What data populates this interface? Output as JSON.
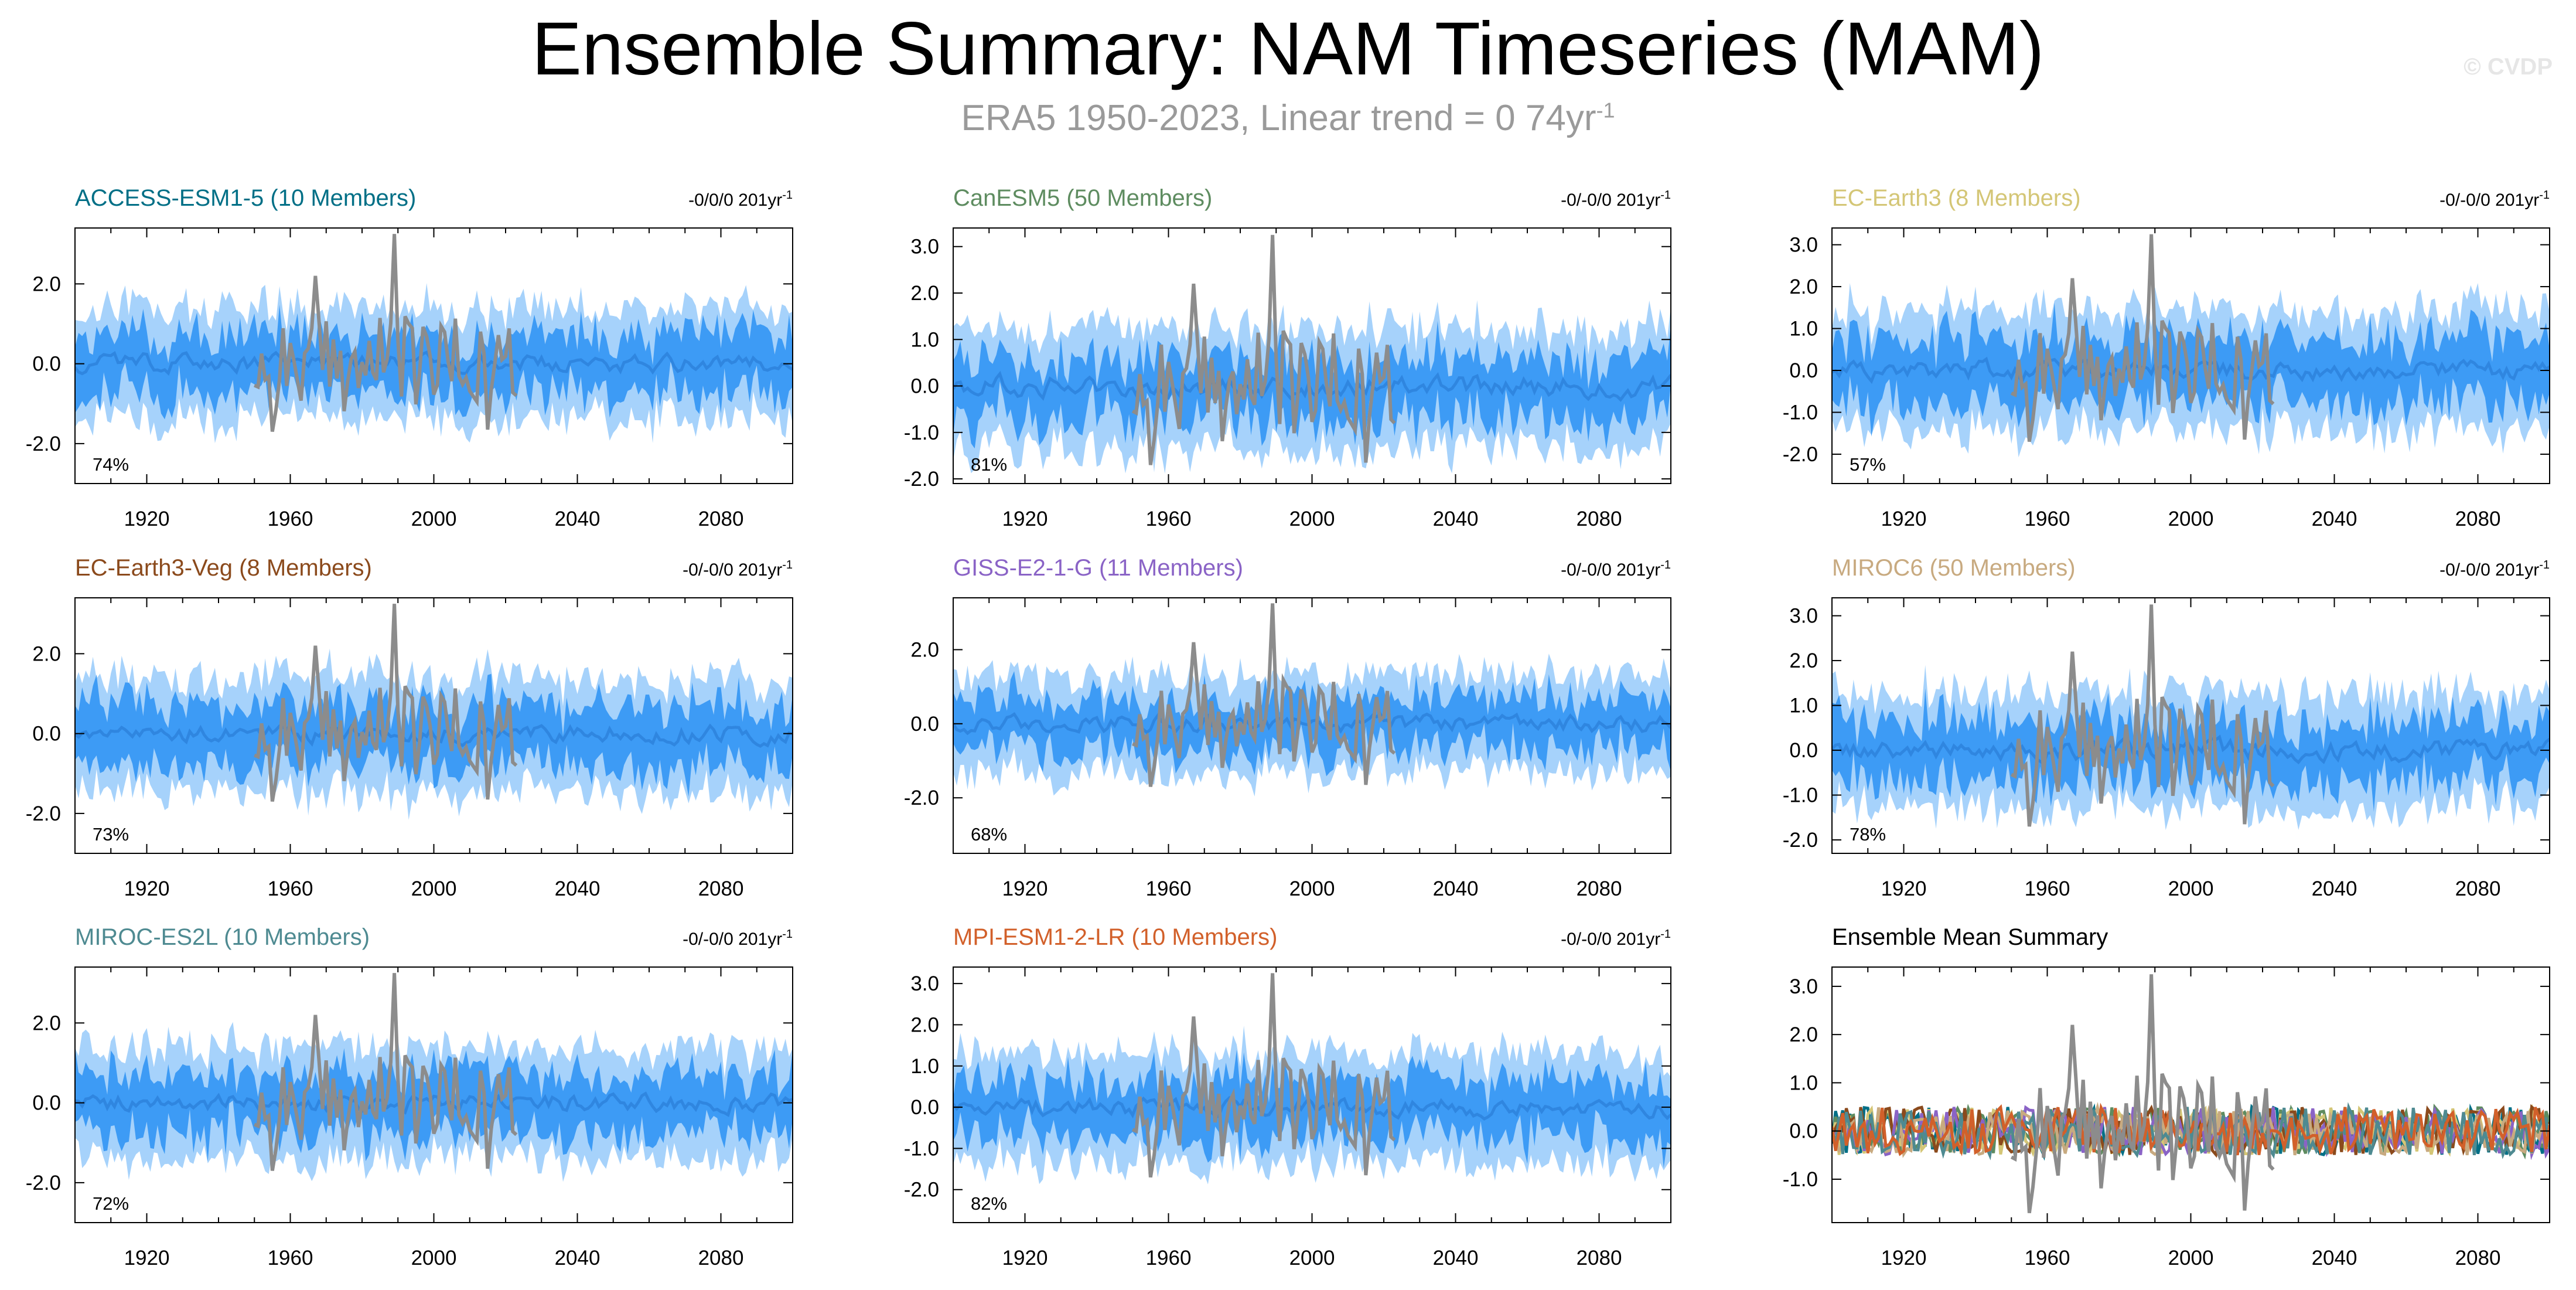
{
  "title": "Ensemble Summary: NAM Timeseries (MAM)",
  "subtitle": {
    "text": "ERA5 1950-2023, Linear trend = 0 74yr",
    "sup": "-1"
  },
  "watermark": "© CVDP",
  "colors": {
    "outer_band": "#a6d2fb",
    "inner_band": "#3d9bf5",
    "ensemble_mean": "#2f86e0",
    "observations": "#8c8c8c",
    "axis": "#000000"
  },
  "chart_data": [
    {
      "type": "area",
      "title": "ACCESS-ESM1-5 (10 Members)",
      "title_color": "#006f86",
      "trend_label": "-0/0/0 201yr",
      "trend_sup": "-1",
      "percent_label": "74%",
      "xlim": [
        1900,
        2100
      ],
      "ylim": [
        -3.0,
        3.4
      ],
      "xticks": [
        "1920",
        "1960",
        "2000",
        "2040",
        "2080"
      ],
      "yticks": [
        "2.0",
        "0.0",
        "-2.0"
      ],
      "outer_halfwidth": 1.45,
      "inner_halfwidth": 0.8
    },
    {
      "type": "area",
      "title": "CanESM5 (50 Members)",
      "title_color": "#5e8c60",
      "trend_label": "-0/-0/0 201yr",
      "trend_sup": "-1",
      "percent_label": "81%",
      "xlim": [
        1900,
        2100
      ],
      "ylim": [
        -2.1,
        3.4
      ],
      "xticks": [
        "1920",
        "1960",
        "2000",
        "2040",
        "2080"
      ],
      "yticks": [
        "3.0",
        "2.0",
        "1.0",
        "0.0",
        "-1.0",
        "-2.0"
      ],
      "outer_halfwidth": 1.35,
      "inner_halfwidth": 0.7
    },
    {
      "type": "area",
      "title": "EC-Earth3 (8 Members)",
      "title_color": "#d4c676",
      "trend_label": "-0/-0/0 201yr",
      "trend_sup": "-1",
      "percent_label": "57%",
      "xlim": [
        1900,
        2100
      ],
      "ylim": [
        -2.7,
        3.4
      ],
      "xticks": [
        "1920",
        "1960",
        "2000",
        "2040",
        "2080"
      ],
      "yticks": [
        "3.0",
        "2.0",
        "1.0",
        "0.0",
        "-1.0",
        "-2.0"
      ],
      "outer_halfwidth": 1.5,
      "inner_halfwidth": 0.85
    },
    {
      "type": "area",
      "title": "EC-Earth3-Veg (8 Members)",
      "title_color": "#8b4a1c",
      "trend_label": "-0/-0/0 201yr",
      "trend_sup": "-1",
      "percent_label": "73%",
      "xlim": [
        1900,
        2100
      ],
      "ylim": [
        -3.0,
        3.4
      ],
      "xticks": [
        "1920",
        "1960",
        "2000",
        "2040",
        "2080"
      ],
      "yticks": [
        "2.0",
        "0.0",
        "-2.0"
      ],
      "outer_halfwidth": 1.5,
      "inner_halfwidth": 0.85
    },
    {
      "type": "area",
      "title": "GISS-E2-1-G (11 Members)",
      "title_color": "#8a63c6",
      "trend_label": "-0/-0/0 201yr",
      "trend_sup": "-1",
      "percent_label": "68%",
      "xlim": [
        1900,
        2100
      ],
      "ylim": [
        -3.5,
        3.4
      ],
      "xticks": [
        "1920",
        "1960",
        "2000",
        "2040",
        "2080"
      ],
      "yticks": [
        "2.0",
        "0.0",
        "-2.0"
      ],
      "outer_halfwidth": 1.4,
      "inner_halfwidth": 0.75
    },
    {
      "type": "area",
      "title": "MIROC6 (50 Members)",
      "title_color": "#c8aa80",
      "trend_label": "-0/-0/0 201yr",
      "trend_sup": "-1",
      "percent_label": "78%",
      "xlim": [
        1900,
        2100
      ],
      "ylim": [
        -2.3,
        3.4
      ],
      "xticks": [
        "1920",
        "1960",
        "2000",
        "2040",
        "2080"
      ],
      "yticks": [
        "3.0",
        "2.0",
        "1.0",
        "0.0",
        "-1.0",
        "-2.0"
      ],
      "outer_halfwidth": 1.35,
      "inner_halfwidth": 0.72
    },
    {
      "type": "area",
      "title": "MIROC-ES2L (10 Members)",
      "title_color": "#4e8a91",
      "trend_label": "-0/-0/0 201yr",
      "trend_sup": "-1",
      "percent_label": "72%",
      "xlim": [
        1900,
        2100
      ],
      "ylim": [
        -3.0,
        3.4
      ],
      "xticks": [
        "1920",
        "1960",
        "2000",
        "2040",
        "2080"
      ],
      "yticks": [
        "2.0",
        "0.0",
        "-2.0"
      ],
      "outer_halfwidth": 1.45,
      "inner_halfwidth": 0.8
    },
    {
      "type": "area",
      "title": "MPI-ESM1-2-LR (10 Members)",
      "title_color": "#d2602a",
      "trend_label": "-0/-0/0 201yr",
      "trend_sup": "-1",
      "percent_label": "82%",
      "xlim": [
        1900,
        2100
      ],
      "ylim": [
        -2.8,
        3.4
      ],
      "xticks": [
        "1920",
        "1960",
        "2000",
        "2040",
        "2080"
      ],
      "yticks": [
        "3.0",
        "2.0",
        "1.0",
        "0.0",
        "-1.0",
        "-2.0"
      ],
      "outer_halfwidth": 1.4,
      "inner_halfwidth": 0.75
    },
    {
      "type": "line",
      "title": "Ensemble Mean Summary",
      "title_color": "#000000",
      "trend_label": "",
      "trend_sup": "",
      "percent_label": "",
      "xlim": [
        1900,
        2100
      ],
      "ylim": [
        -1.9,
        3.4
      ],
      "xticks": [
        "1920",
        "1960",
        "2000",
        "2040",
        "2080"
      ],
      "yticks": [
        "3.0",
        "2.0",
        "1.0",
        "0.0",
        "-1.0"
      ],
      "series": [
        {
          "color": "#006f86"
        },
        {
          "color": "#5e8c60"
        },
        {
          "color": "#d4c676"
        },
        {
          "color": "#8b4a1c"
        },
        {
          "color": "#8a63c6"
        },
        {
          "color": "#c8aa80"
        },
        {
          "color": "#4e8a91"
        },
        {
          "color": "#d2602a"
        }
      ]
    }
  ]
}
